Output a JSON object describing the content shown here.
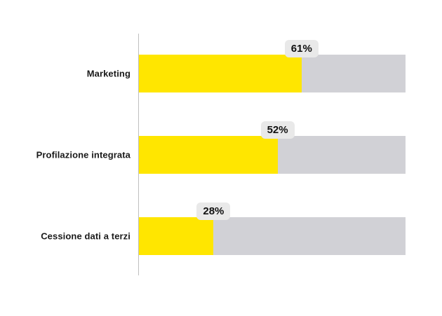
{
  "chart_data": {
    "type": "bar",
    "orientation": "horizontal",
    "title": "",
    "categories": [
      "Marketing",
      "Profilazione integrata",
      "Cessione dati a terzi"
    ],
    "values": [
      61,
      52,
      28
    ],
    "value_labels": [
      "61%",
      "52%",
      "28%"
    ],
    "value_suffix": "%",
    "xlim": [
      0,
      100
    ],
    "grid": false,
    "legend": false,
    "bar_color": "#FFE600",
    "track_color": "#D1D1D6",
    "badge_color": "#E9E9E9",
    "axis_line_color": "#BFBFBF",
    "text_color": "#1A1A1A"
  }
}
